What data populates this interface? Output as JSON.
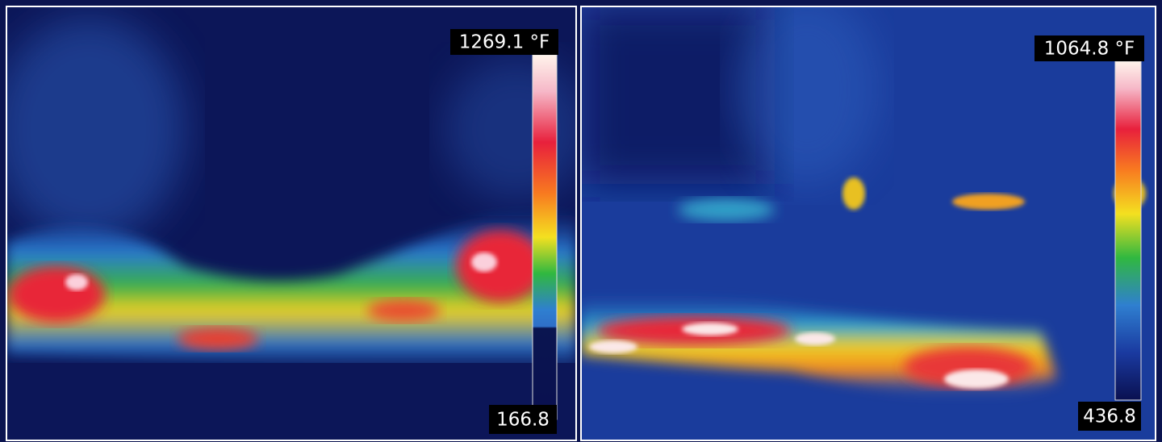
{
  "panels": [
    {
      "max_label": "1269.1 °F",
      "min_label": "166.8"
    },
    {
      "max_label": "1064.8 °F",
      "min_label": "436.8"
    }
  ]
}
